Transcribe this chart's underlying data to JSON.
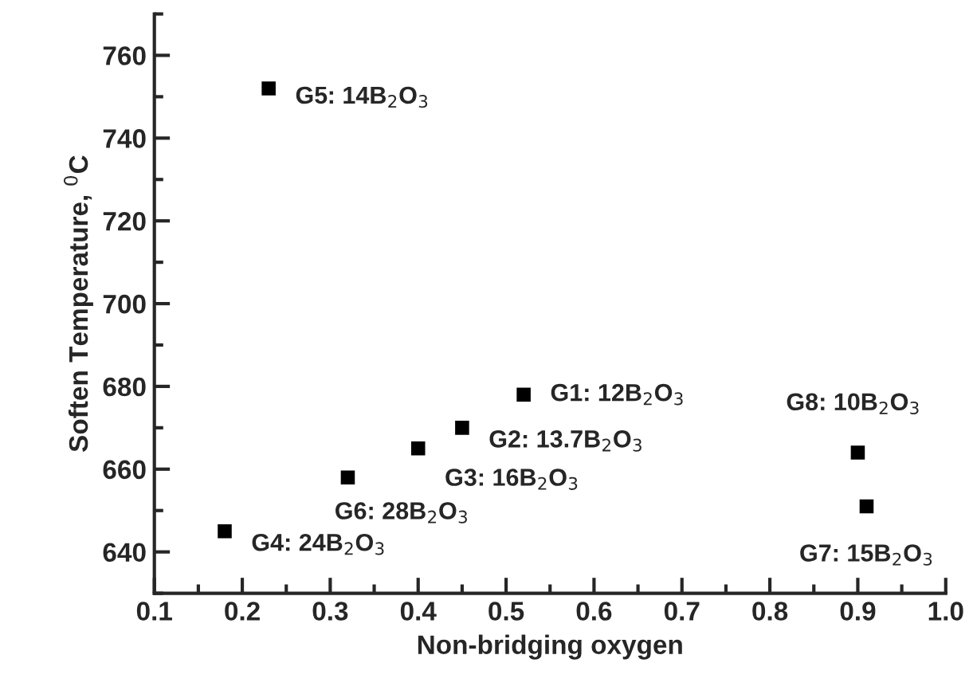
{
  "chart_data": {
    "type": "scatter",
    "xlabel": "Non-bridging oxygen",
    "ylabel": "Soften Temperature, $^{0}$C",
    "x": [
      0.52,
      0.45,
      0.4,
      0.18,
      0.23,
      0.32,
      0.91,
      0.9
    ],
    "series": [
      {
        "color": "#000000",
        "values": [
          678,
          670,
          665,
          645,
          752,
          658,
          651,
          664
        ]
      }
    ],
    "marker": "square",
    "xlim": [
      0.1,
      1.0
    ],
    "ylim": [
      630,
      770
    ],
    "xticks": [
      0.1,
      0.2,
      0.3,
      0.4,
      0.5,
      0.6,
      0.7,
      0.8,
      0.9,
      {
        "value": 1.0,
        "label": "1.0"
      }
    ],
    "yticks": [
      640,
      660,
      680,
      700,
      720,
      740,
      760
    ],
    "grid": false,
    "annotations": [
      {
        "text": "G1: 12B$_{2}$O$_{3}$",
        "x": 0.52,
        "y": 678
      },
      {
        "text": "G2: 13.7B$_{2}$O$_{3}$",
        "x": 0.45,
        "y": 670
      },
      {
        "text": "G3: 16B$_{2}$O$_{3}$",
        "x": 0.4,
        "y": 665
      },
      {
        "text": "G4: 24B$_{2}$O$_{3}$",
        "x": 0.18,
        "y": 645
      },
      {
        "text": "G5: 14B$_{2}$O$_{3}$",
        "x": 0.23,
        "y": 752
      },
      {
        "text": "G6: 28B$_{2}$O$_{3}$",
        "x": 0.32,
        "y": 658
      },
      {
        "text": "G7: 15B$_{2}$O$_{3}$",
        "x": 0.91,
        "y": 651
      },
      {
        "text": "G8: 10B$_{2}$O$_{3}$",
        "x": 0.9,
        "y": 664
      }
    ]
  }
}
